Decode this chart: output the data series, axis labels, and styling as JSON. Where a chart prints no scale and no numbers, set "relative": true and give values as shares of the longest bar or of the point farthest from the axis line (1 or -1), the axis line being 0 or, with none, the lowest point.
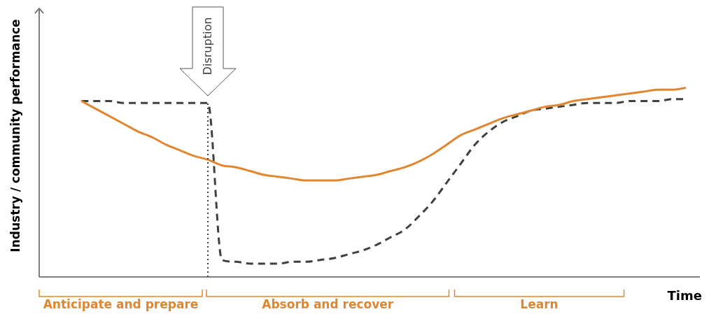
{
  "chart_data": {
    "type": "line",
    "relative": true,
    "xlabel": "Time",
    "ylabel": "Industry / community performance",
    "legend": false,
    "marker": "none",
    "annotations": [
      "Disruption",
      "Anticipate and prepare",
      "Absorb and recover",
      "Learn"
    ],
    "categories": [
      null,
      null,
      null,
      null,
      null,
      null,
      null,
      null,
      null,
      null,
      null,
      null,
      null,
      null,
      null,
      null,
      null,
      null,
      null,
      null,
      null,
      null,
      null,
      null,
      null,
      null,
      null,
      null,
      null,
      null,
      null,
      null,
      null,
      null,
      null,
      null,
      null,
      null,
      null,
      null,
      null,
      null,
      null,
      null,
      null,
      null,
      null,
      null
    ],
    "series": [
      {
        "color": "#e0862e",
        "line_style": "solid",
        "values": [
          null,
          null,
          null,
          0.93,
          0.89,
          0.85,
          0.81,
          0.77,
          0.74,
          0.7,
          0.67,
          0.64,
          0.62,
          0.59,
          0.58,
          0.56,
          0.54,
          0.53,
          0.52,
          0.51,
          0.51,
          0.51,
          0.52,
          0.53,
          0.54,
          0.56,
          0.58,
          0.61,
          0.65,
          0.7,
          0.75,
          0.78,
          0.81,
          0.84,
          0.86,
          0.88,
          0.9,
          0.91,
          0.93,
          0.94,
          0.95,
          0.96,
          0.97,
          0.98,
          0.99,
          0.99,
          1,
          null
        ]
      },
      {
        "color": "#404040",
        "line_style": "dashed",
        "values": [
          null,
          null,
          null,
          0.93,
          0.93,
          0.93,
          0.92,
          0.92,
          0.92,
          0.92,
          0.92,
          0.92,
          0.92,
          0.09,
          0.08,
          0.07,
          0.07,
          0.07,
          0.08,
          0.08,
          0.09,
          0.1,
          0.12,
          0.14,
          0.17,
          0.21,
          0.25,
          0.32,
          0.4,
          0.5,
          0.6,
          0.7,
          0.77,
          0.82,
          0.85,
          0.88,
          0.89,
          0.9,
          0.91,
          0.92,
          0.92,
          0.92,
          0.93,
          0.93,
          0.93,
          0.94,
          0.94,
          null
        ]
      }
    ]
  }
}
